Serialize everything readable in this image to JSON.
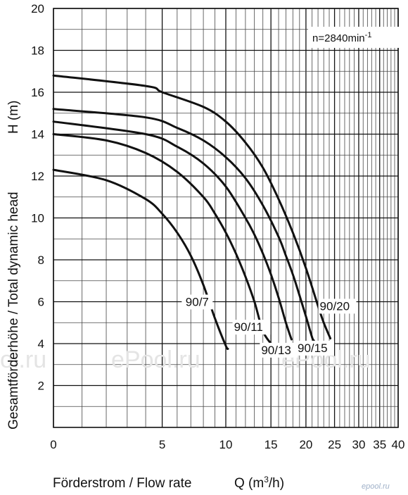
{
  "chart_data": {
    "type": "line",
    "title": "",
    "annotation": {
      "text": "n=2840min",
      "superscript": "-1"
    },
    "xlabel": {
      "prefix": "Förderstrom / Flow rate",
      "quantity": "Q (m",
      "sup": "3",
      "suffix": "/h)"
    },
    "ylabel": {
      "main": "Gesamtförderhöhe / Total dynamic head",
      "unit": "H (m)"
    },
    "x_scale": "log(Q+5)",
    "xlim": [
      0,
      40
    ],
    "ylim": [
      0,
      20
    ],
    "x_ticks": [
      0,
      5,
      10,
      15,
      20,
      25,
      30,
      35,
      40
    ],
    "x_tick_labels": [
      "0",
      "5",
      "10",
      "15",
      "20",
      "25",
      "30",
      "35",
      "40"
    ],
    "y_ticks": [
      2,
      4,
      6,
      8,
      10,
      12,
      14,
      16,
      18,
      20
    ],
    "y_tick_labels": [
      "2",
      "4",
      "6",
      "8",
      "10",
      "12",
      "14",
      "16",
      "18",
      "20"
    ],
    "grid": true,
    "series": [
      {
        "name": "90/7",
        "x": [
          0,
          2,
          4,
          5,
          6,
          7,
          8,
          9,
          10,
          10.2
        ],
        "y": [
          12.3,
          11.8,
          10.9,
          10.2,
          9.3,
          8.2,
          6.8,
          5.2,
          3.9,
          3.75
        ]
      },
      {
        "name": "90/11",
        "x": [
          0,
          2,
          4,
          6,
          8,
          9,
          10,
          11,
          12,
          13,
          14,
          15
        ],
        "y": [
          14.0,
          13.7,
          13.1,
          12.2,
          11.0,
          10.2,
          9.3,
          8.3,
          7.2,
          6.0,
          4.6,
          4.0
        ]
      },
      {
        "name": "90/13",
        "x": [
          0,
          4,
          6,
          8,
          10,
          12,
          13,
          14,
          15,
          16,
          17,
          17.8
        ],
        "y": [
          14.6,
          14.0,
          13.4,
          12.6,
          11.5,
          10.0,
          9.2,
          8.3,
          7.3,
          6.2,
          5.0,
          4.2
        ]
      },
      {
        "name": "90/15",
        "x": [
          0,
          4,
          6,
          8,
          10,
          12,
          14,
          16,
          17,
          18,
          19,
          20,
          21,
          21.3
        ],
        "y": [
          15.2,
          14.8,
          14.3,
          13.7,
          12.9,
          11.9,
          10.6,
          9.1,
          8.2,
          7.3,
          6.3,
          5.3,
          4.3,
          4.15
        ]
      },
      {
        "name": "90/20",
        "x": [
          0,
          4,
          5,
          8,
          10,
          12,
          14,
          16,
          18,
          20,
          22,
          23,
          24.2
        ],
        "y": [
          16.8,
          16.3,
          16.0,
          15.3,
          14.6,
          13.6,
          12.4,
          10.9,
          9.3,
          7.6,
          5.8,
          5.0,
          4.25
        ]
      }
    ],
    "series_labels": [
      "90/7",
      "90/11",
      "90/13",
      "90/15",
      "90/20"
    ]
  },
  "watermarks": [
    "ol.ru",
    "ePool.ru",
    "ePool.ru"
  ],
  "site_mark": "epool.ru"
}
